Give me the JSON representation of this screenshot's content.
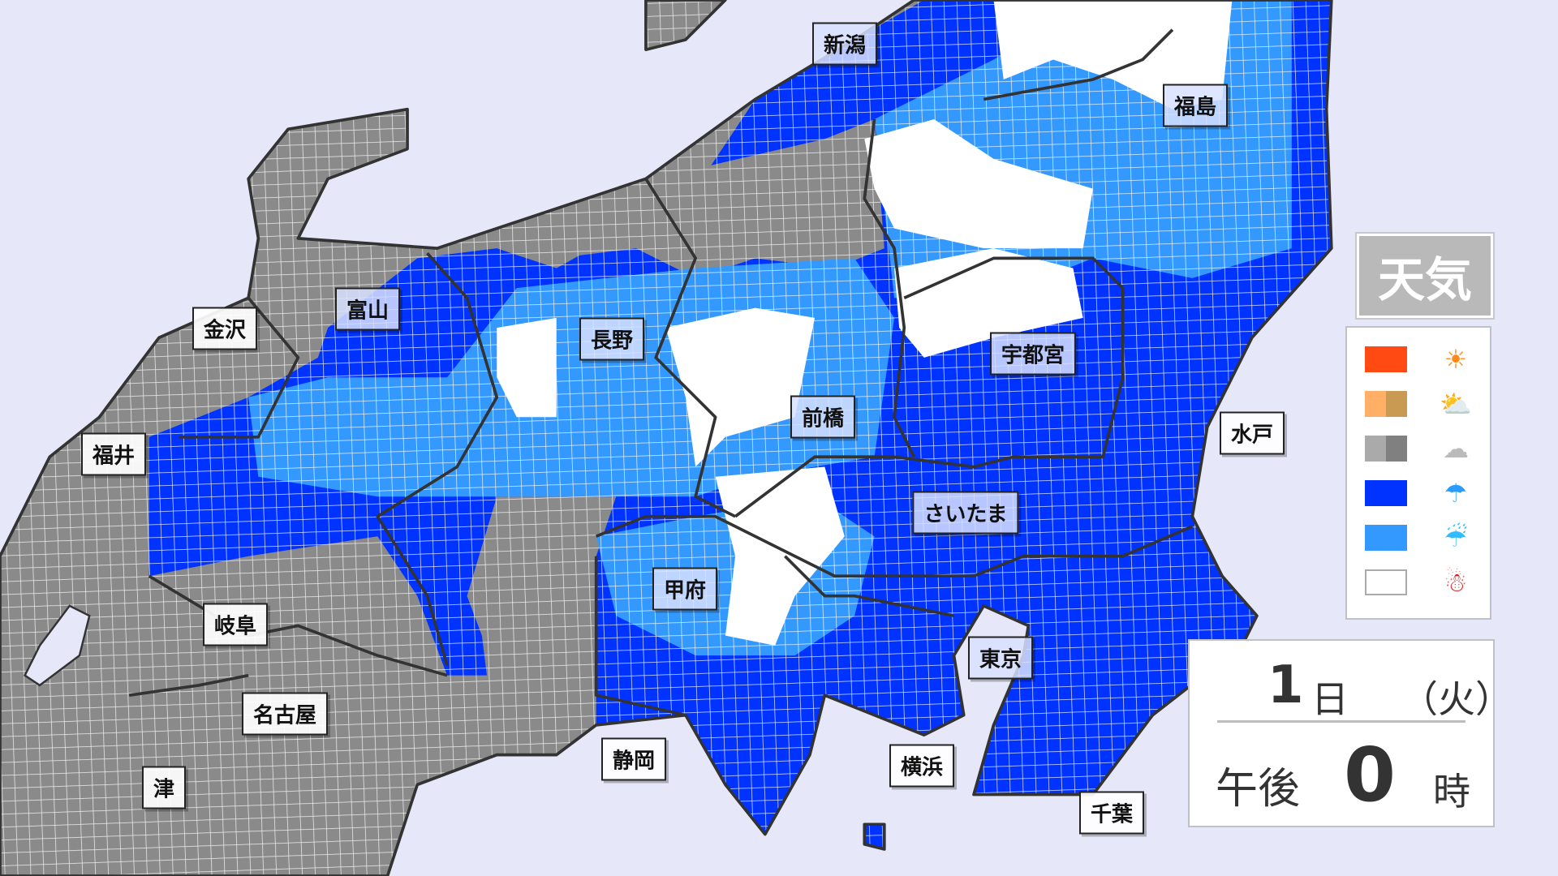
{
  "legend": {
    "title": "天気",
    "items": [
      {
        "colors": [
          "#ff4a14"
        ],
        "icon": "sun-icon",
        "glyph": "☀"
      },
      {
        "colors": [
          "#ffb066",
          "#c89a52"
        ],
        "icon": "sun-cloud-icon",
        "glyph": "⛅"
      },
      {
        "colors": [
          "#aaaaaa",
          "#808080"
        ],
        "icon": "cloud-icon",
        "glyph": "☁"
      },
      {
        "colors": [
          "#0033ff"
        ],
        "icon": "umbrella-rain-icon",
        "glyph": "☂"
      },
      {
        "colors": [
          "#3399ff"
        ],
        "icon": "umbrella-sleet-icon",
        "glyph": "☔"
      },
      {
        "colors": [
          "#ffffff"
        ],
        "icon": "snowman-icon",
        "glyph": "☃"
      }
    ]
  },
  "datetime": {
    "day": "1",
    "day_unit": "日",
    "weekday": "（火）",
    "ampm": "午後",
    "hour": "0",
    "hour_unit": "時"
  },
  "cities": [
    {
      "name": "新潟",
      "tint": true
    },
    {
      "name": "福島",
      "tint": true
    },
    {
      "name": "富山",
      "tint": true
    },
    {
      "name": "金沢",
      "tint": false
    },
    {
      "name": "長野",
      "tint": true
    },
    {
      "name": "宇都宮",
      "tint": true
    },
    {
      "name": "前橋",
      "tint": true
    },
    {
      "name": "水戸",
      "tint": false
    },
    {
      "name": "福井",
      "tint": false
    },
    {
      "name": "さいたま",
      "tint": true
    },
    {
      "name": "甲府",
      "tint": true
    },
    {
      "name": "岐阜",
      "tint": false
    },
    {
      "name": "東京",
      "tint": true
    },
    {
      "name": "名古屋",
      "tint": false
    },
    {
      "name": "静岡",
      "tint": false
    },
    {
      "name": "横浜",
      "tint": false
    },
    {
      "name": "津",
      "tint": false
    },
    {
      "name": "千葉",
      "tint": false
    }
  ],
  "colors": {
    "sea": "#e6e7f8",
    "rain": "#0033ff",
    "sleet": "#3399ff",
    "cloud": "#8a8a8a",
    "snow": "#ffffff",
    "border": "#333333"
  }
}
